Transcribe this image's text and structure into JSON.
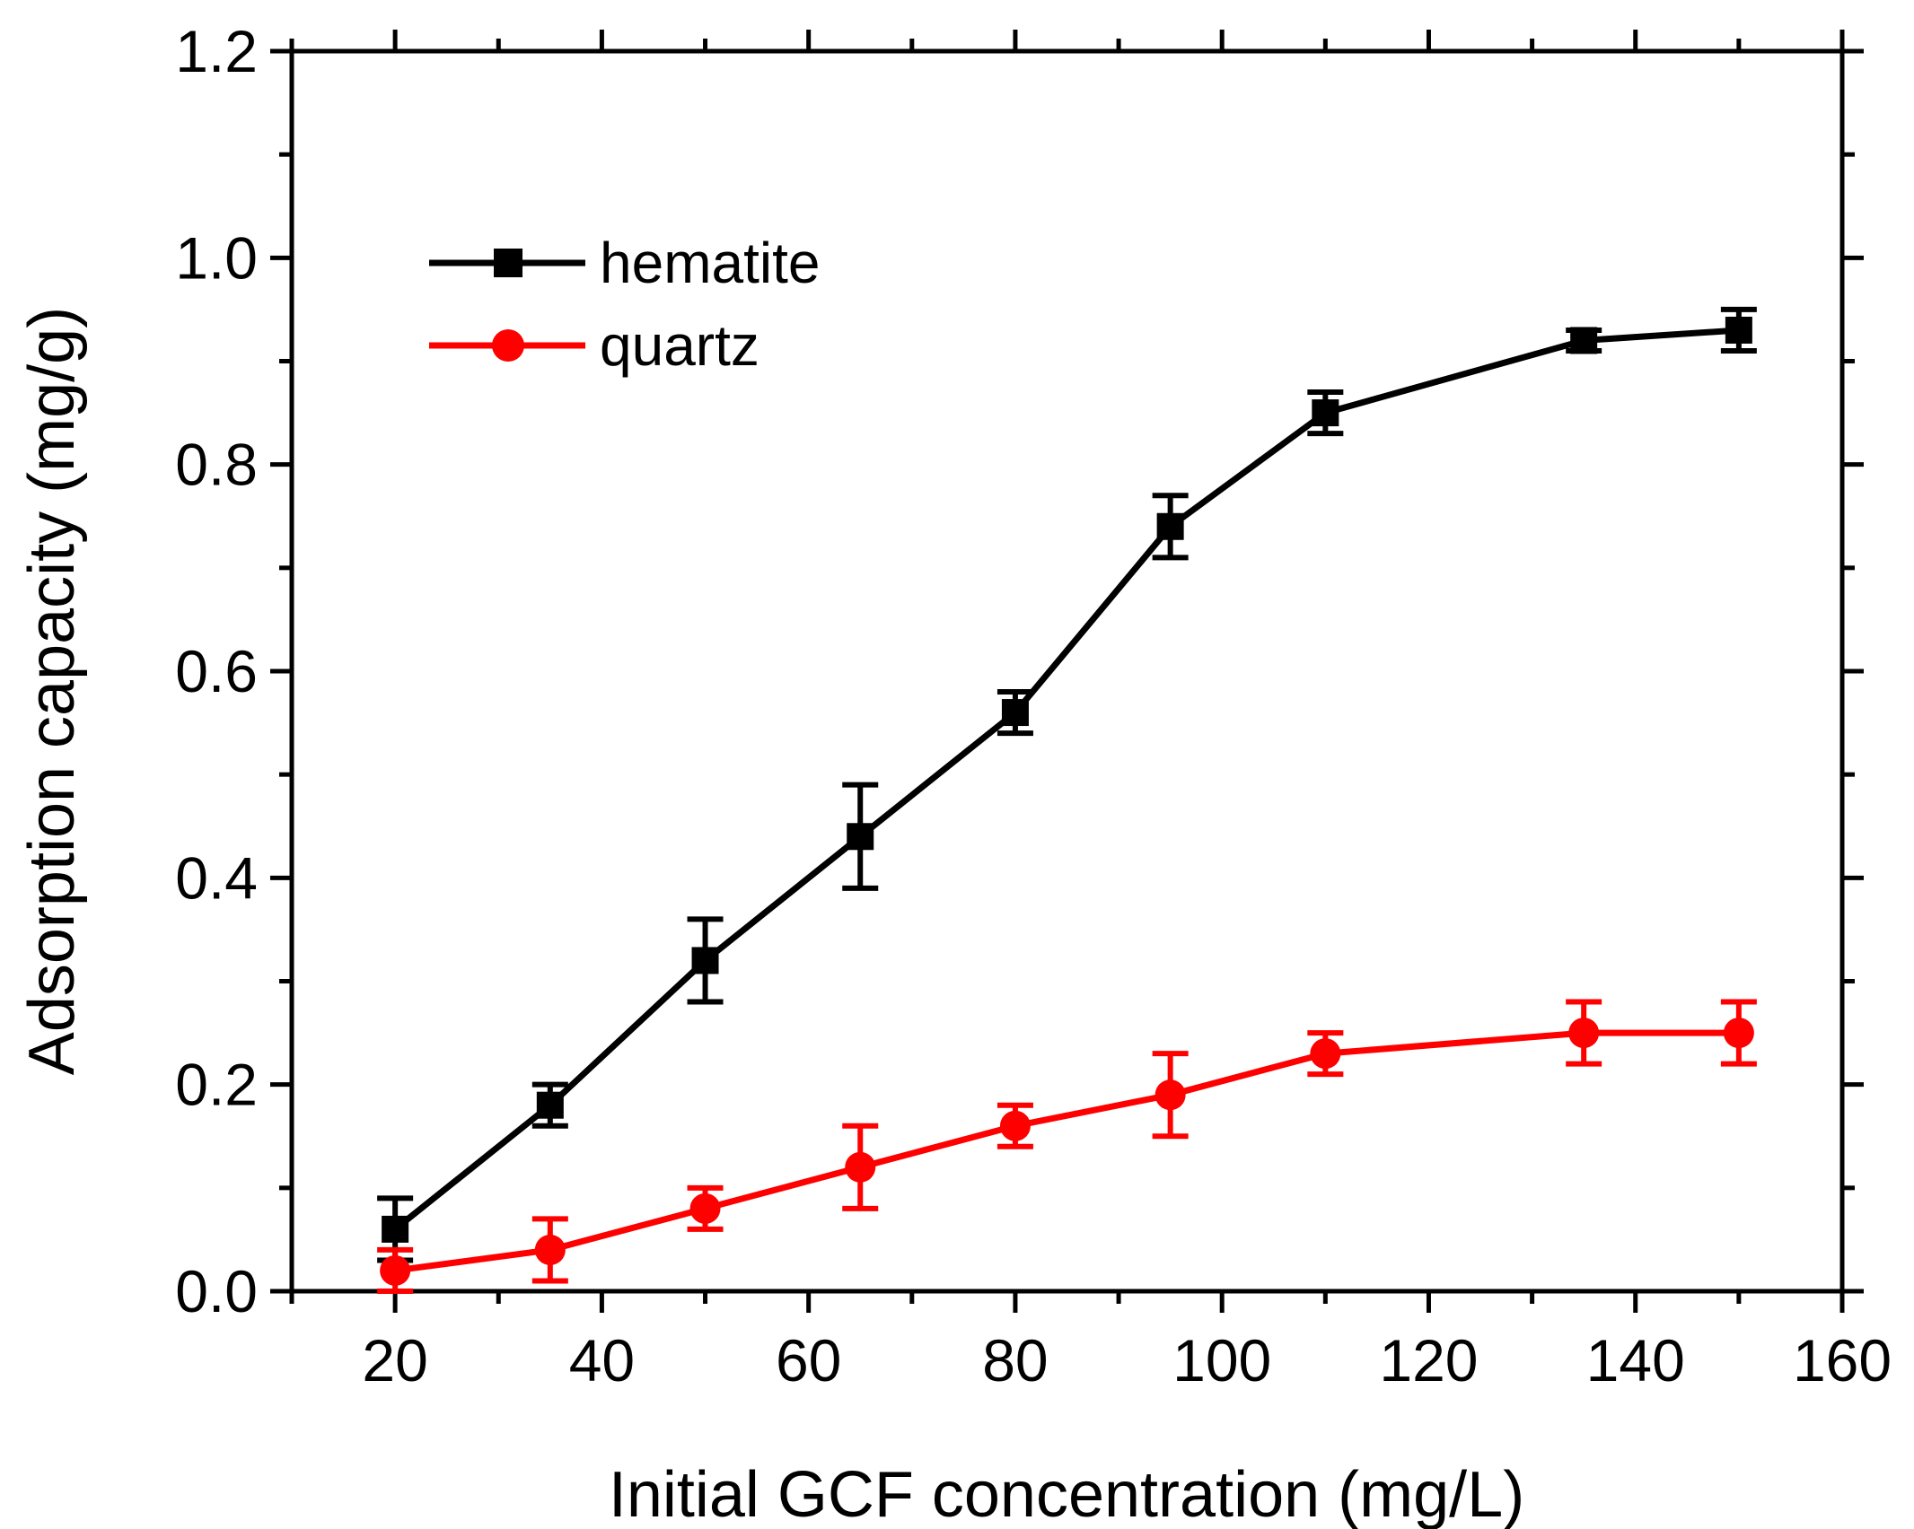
{
  "chart_data": {
    "type": "line",
    "title": "",
    "xlabel": "Initial GCF concentration (mg/L)",
    "ylabel": "Adsorption capacity (mg/g)",
    "xlim": [
      10,
      160
    ],
    "ylim": [
      0.0,
      1.2
    ],
    "x_ticks": [
      20,
      40,
      60,
      80,
      100,
      120,
      140,
      160
    ],
    "x_tick_labels": [
      "20",
      "40",
      "60",
      "80",
      "100",
      "120",
      "140",
      "160"
    ],
    "y_ticks": [
      0.0,
      0.2,
      0.4,
      0.6,
      0.8,
      1.0,
      1.2
    ],
    "y_tick_labels": [
      "0.0",
      "0.2",
      "0.4",
      "0.6",
      "0.8",
      "1.0",
      "1.2"
    ],
    "grid": false,
    "legend_position": "top-left",
    "series": [
      {
        "name": "hematite",
        "color": "#000000",
        "marker": "square",
        "x": [
          20,
          35,
          50,
          65,
          80,
          95,
          110,
          135,
          150
        ],
        "y": [
          0.06,
          0.18,
          0.32,
          0.44,
          0.56,
          0.74,
          0.85,
          0.92,
          0.93
        ],
        "error": [
          0.03,
          0.02,
          0.04,
          0.05,
          0.02,
          0.03,
          0.02,
          0.01,
          0.02
        ]
      },
      {
        "name": "quartz",
        "color": "#ff0000",
        "marker": "circle",
        "x": [
          20,
          35,
          50,
          65,
          80,
          95,
          110,
          135,
          150
        ],
        "y": [
          0.02,
          0.04,
          0.08,
          0.12,
          0.16,
          0.19,
          0.23,
          0.25,
          0.25
        ],
        "error": [
          0.02,
          0.03,
          0.02,
          0.04,
          0.02,
          0.04,
          0.02,
          0.03,
          0.03
        ]
      }
    ]
  }
}
